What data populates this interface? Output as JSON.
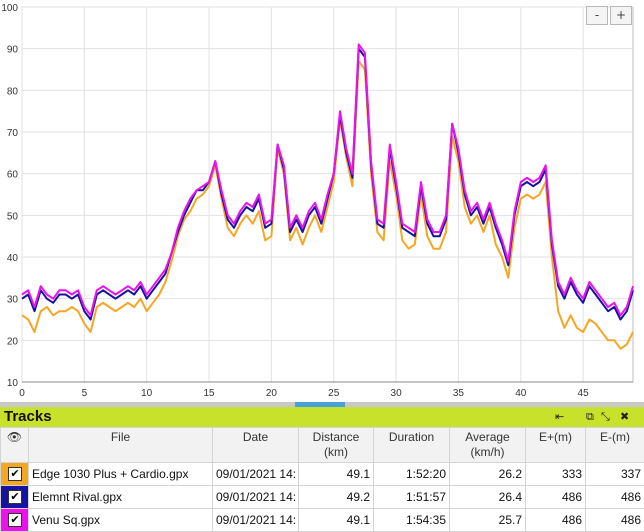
{
  "zoom": {
    "minus": "-",
    "plus": "+"
  },
  "tracks_panel": {
    "title": "Tracks",
    "icons": {
      "pin": "⇤",
      "restore": "⧉",
      "expand": "⤡",
      "close": "✖"
    }
  },
  "table": {
    "headers": {
      "visibility": "👁",
      "file": "File",
      "date": "Date",
      "distance": "Distance",
      "distance_unit": "(km)",
      "duration": "Duration",
      "average": "Average",
      "average_unit": "(km/h)",
      "e_plus": "E+(m)",
      "e_minus": "E-(m)"
    },
    "rows": [
      {
        "color": "#f5a623",
        "checked": "✔",
        "file": "Edge 1030 Plus + Cardio.gpx",
        "date": "09/01/2021 14:",
        "distance": "49.1",
        "duration": "1:52:20",
        "average": "26.2",
        "e_plus": "333",
        "e_minus": "337"
      },
      {
        "color": "#1414a0",
        "checked": "✔",
        "file": "Elemnt Rival.gpx",
        "date": "09/01/2021 14:",
        "distance": "49.2",
        "duration": "1:51:57",
        "average": "26.4",
        "e_plus": "486",
        "e_minus": "486"
      },
      {
        "color": "#ee10ee",
        "checked": "✔",
        "file": "Venu Sq.gpx",
        "date": "09/01/2021 14:",
        "distance": "49.1",
        "duration": "1:54:35",
        "average": "25.7",
        "e_plus": "486",
        "e_minus": "486"
      }
    ]
  },
  "chart_data": {
    "type": "line",
    "xlim": [
      0,
      49
    ],
    "ylim": [
      10,
      100
    ],
    "x_ticks": [
      "0",
      "5",
      "10",
      "15",
      "20",
      "25",
      "30",
      "35",
      "40",
      "45"
    ],
    "y_ticks": [
      "10",
      "20",
      "30",
      "40",
      "50",
      "60",
      "70",
      "80",
      "90",
      "100"
    ],
    "grid": true,
    "series": [
      {
        "color": "#f5a623",
        "x": [
          0,
          0.5,
          1,
          1.5,
          2,
          2.5,
          3,
          3.5,
          4,
          4.5,
          5,
          5.5,
          6,
          6.5,
          7,
          7.5,
          8,
          8.5,
          9,
          9.5,
          10,
          10.5,
          11,
          11.5,
          12,
          12.5,
          13,
          13.5,
          14,
          14.5,
          15,
          15.5,
          16,
          16.5,
          17,
          17.5,
          18,
          18.5,
          19,
          19.5,
          20,
          20.5,
          21,
          21.5,
          22,
          22.5,
          23,
          23.5,
          24,
          24.5,
          25,
          25.5,
          26,
          26.5,
          27,
          27.5,
          28,
          28.5,
          29,
          29.5,
          30,
          30.5,
          31,
          31.5,
          32,
          32.5,
          33,
          33.5,
          34,
          34.5,
          35,
          35.5,
          36,
          36.5,
          37,
          37.5,
          38,
          38.5,
          39,
          39.5,
          40,
          40.5,
          41,
          41.5,
          42,
          42.5,
          43,
          43.5,
          44,
          44.5,
          45,
          45.5,
          46,
          46.5,
          47,
          47.5,
          48,
          48.5,
          49
        ],
        "y": [
          26,
          25,
          22,
          27,
          28,
          26,
          27,
          27,
          28,
          27,
          24,
          22,
          28,
          29,
          28,
          27,
          28,
          29,
          28,
          30,
          27,
          29,
          31,
          34,
          39,
          45,
          49,
          51,
          54,
          55,
          57,
          62,
          54,
          47,
          45,
          48,
          50,
          48,
          51,
          44,
          45,
          66,
          60,
          44,
          47,
          43,
          47,
          50,
          46,
          52,
          58,
          73,
          64,
          57,
          87,
          85,
          60,
          46,
          44,
          63,
          55,
          44,
          42,
          43,
          55,
          45,
          42,
          42,
          46,
          69,
          63,
          52,
          48,
          50,
          46,
          50,
          43,
          40,
          35,
          47,
          54,
          55,
          54,
          55,
          58,
          40,
          27,
          23,
          26,
          23,
          22,
          25,
          24,
          22,
          20,
          20,
          18,
          19,
          22
        ]
      },
      {
        "color": "#1414a0",
        "x": [
          0,
          0.5,
          1,
          1.5,
          2,
          2.5,
          3,
          3.5,
          4,
          4.5,
          5,
          5.5,
          6,
          6.5,
          7,
          7.5,
          8,
          8.5,
          9,
          9.5,
          10,
          10.5,
          11,
          11.5,
          12,
          12.5,
          13,
          13.5,
          14,
          14.5,
          15,
          15.5,
          16,
          16.5,
          17,
          17.5,
          18,
          18.5,
          19,
          19.5,
          20,
          20.5,
          21,
          21.5,
          22,
          22.5,
          23,
          23.5,
          24,
          24.5,
          25,
          25.5,
          26,
          26.5,
          27,
          27.5,
          28,
          28.5,
          29,
          29.5,
          30,
          30.5,
          31,
          31.5,
          32,
          32.5,
          33,
          33.5,
          34,
          34.5,
          35,
          35.5,
          36,
          36.5,
          37,
          37.5,
          38,
          38.5,
          39,
          39.5,
          40,
          40.5,
          41,
          41.5,
          42,
          42.5,
          43,
          43.5,
          44,
          44.5,
          45,
          45.5,
          46,
          46.5,
          47,
          47.5,
          48,
          48.5,
          49
        ],
        "y": [
          30,
          31,
          27,
          32,
          30,
          29,
          31,
          31,
          30,
          31,
          27,
          25,
          31,
          32,
          31,
          30,
          31,
          32,
          31,
          33,
          30,
          32,
          34,
          36,
          41,
          46,
          50,
          53,
          56,
          56,
          58,
          63,
          55,
          49,
          47,
          50,
          52,
          51,
          54,
          47,
          48,
          67,
          61,
          46,
          49,
          46,
          50,
          52,
          48,
          54,
          60,
          74,
          65,
          59,
          90,
          88,
          62,
          48,
          47,
          66,
          57,
          47,
          46,
          45,
          57,
          48,
          45,
          45,
          49,
          72,
          65,
          55,
          50,
          52,
          48,
          52,
          47,
          43,
          38,
          50,
          57,
          58,
          57,
          58,
          61,
          43,
          33,
          30,
          34,
          31,
          29,
          33,
          31,
          29,
          27,
          28,
          25,
          27,
          32
        ]
      },
      {
        "color": "#ee10ee",
        "x": [
          0,
          0.5,
          1,
          1.5,
          2,
          2.5,
          3,
          3.5,
          4,
          4.5,
          5,
          5.5,
          6,
          6.5,
          7,
          7.5,
          8,
          8.5,
          9,
          9.5,
          10,
          10.5,
          11,
          11.5,
          12,
          12.5,
          13,
          13.5,
          14,
          14.5,
          15,
          15.5,
          16,
          16.5,
          17,
          17.5,
          18,
          18.5,
          19,
          19.5,
          20,
          20.5,
          21,
          21.5,
          22,
          22.5,
          23,
          23.5,
          24,
          24.5,
          25,
          25.5,
          26,
          26.5,
          27,
          27.5,
          28,
          28.5,
          29,
          29.5,
          30,
          30.5,
          31,
          31.5,
          32,
          32.5,
          33,
          33.5,
          34,
          34.5,
          35,
          35.5,
          36,
          36.5,
          37,
          37.5,
          38,
          38.5,
          39,
          39.5,
          40,
          40.5,
          41,
          41.5,
          42,
          42.5,
          43,
          43.5,
          44,
          44.5,
          45,
          45.5,
          46,
          46.5,
          47,
          47.5,
          48,
          48.5,
          49
        ],
        "y": [
          31,
          32,
          28,
          33,
          31,
          30,
          32,
          32,
          31,
          32,
          28,
          26,
          32,
          33,
          32,
          31,
          32,
          33,
          32,
          34,
          31,
          33,
          35,
          37,
          41,
          47,
          51,
          54,
          56,
          57,
          58,
          63,
          56,
          50,
          48,
          51,
          53,
          52,
          55,
          48,
          49,
          67,
          62,
          47,
          50,
          47,
          51,
          53,
          49,
          55,
          60,
          75,
          66,
          60,
          91,
          89,
          63,
          49,
          48,
          67,
          58,
          48,
          47,
          46,
          58,
          49,
          46,
          46,
          50,
          72,
          66,
          56,
          51,
          53,
          49,
          53,
          48,
          44,
          39,
          51,
          58,
          59,
          58,
          59,
          62,
          44,
          34,
          31,
          35,
          32,
          30,
          34,
          32,
          30,
          28,
          29,
          26,
          28,
          33
        ]
      }
    ]
  }
}
